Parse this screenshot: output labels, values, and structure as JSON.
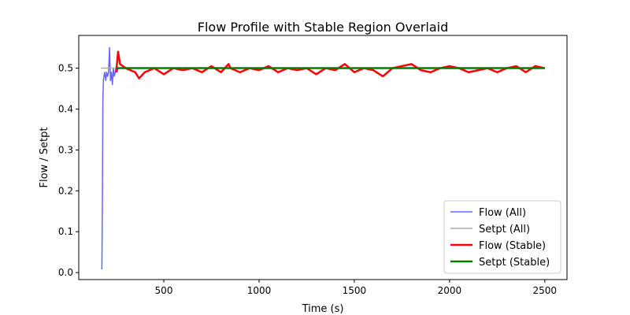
{
  "chart_data": {
    "type": "line",
    "title": "Flow Profile with Stable Region Overlaid",
    "x_label": "Time (s)",
    "y_label": "Flow / Setpt",
    "xlim": [
      53.5,
      2616.5
    ],
    "ylim": [
      -0.017,
      0.58
    ],
    "xticks": [
      500,
      1000,
      1500,
      2000,
      2500
    ],
    "yticks": [
      {
        "value": 0,
        "label": "0.0"
      },
      0.1,
      0.2,
      0.3,
      0.4,
      0.5
    ],
    "legend": "lower right",
    "series": [
      {
        "name": "Flow (All)",
        "color": "#6666ff",
        "width": 1.5,
        "x": [
          170,
          175,
          178,
          180,
          183,
          186,
          190,
          195,
          200,
          205,
          210,
          215,
          220,
          225,
          230,
          235,
          240,
          245,
          250,
          255,
          260
        ],
        "values": [
          0.01,
          0.01,
          0.2,
          0.42,
          0.47,
          0.48,
          0.49,
          0.47,
          0.49,
          0.48,
          0.49,
          0.55,
          0.47,
          0.49,
          0.46,
          0.5,
          0.48,
          0.49,
          0.5,
          0.49,
          0.5
        ]
      },
      {
        "name": "Setpt (All)",
        "color": "#aaaaaa",
        "width": 1.5,
        "x": [
          170,
          2500
        ],
        "values": [
          0.5,
          0.5
        ]
      },
      {
        "name": "Flow (Stable)",
        "color": "#ff0000",
        "width": 2.5,
        "x": [
          250,
          260,
          270,
          300,
          350,
          370,
          400,
          450,
          500,
          550,
          600,
          650,
          700,
          750,
          800,
          840,
          850,
          900,
          950,
          1000,
          1050,
          1100,
          1150,
          1200,
          1250,
          1300,
          1350,
          1400,
          1450,
          1500,
          1550,
          1600,
          1650,
          1700,
          1750,
          1800,
          1850,
          1900,
          1950,
          2000,
          2050,
          2100,
          2150,
          2200,
          2250,
          2300,
          2350,
          2400,
          2450,
          2500
        ],
        "values": [
          0.49,
          0.54,
          0.51,
          0.5,
          0.49,
          0.475,
          0.49,
          0.5,
          0.485,
          0.5,
          0.495,
          0.5,
          0.49,
          0.505,
          0.49,
          0.51,
          0.5,
          0.49,
          0.5,
          0.495,
          0.505,
          0.49,
          0.5,
          0.495,
          0.5,
          0.485,
          0.5,
          0.495,
          0.51,
          0.49,
          0.5,
          0.495,
          0.48,
          0.5,
          0.505,
          0.51,
          0.495,
          0.49,
          0.5,
          0.505,
          0.5,
          0.49,
          0.495,
          0.5,
          0.49,
          0.5,
          0.505,
          0.49,
          0.505,
          0.5
        ]
      },
      {
        "name": "Setpt (Stable)",
        "color": "#008000",
        "width": 2.5,
        "x": [
          250,
          2500
        ],
        "values": [
          0.5,
          0.5
        ]
      }
    ]
  }
}
